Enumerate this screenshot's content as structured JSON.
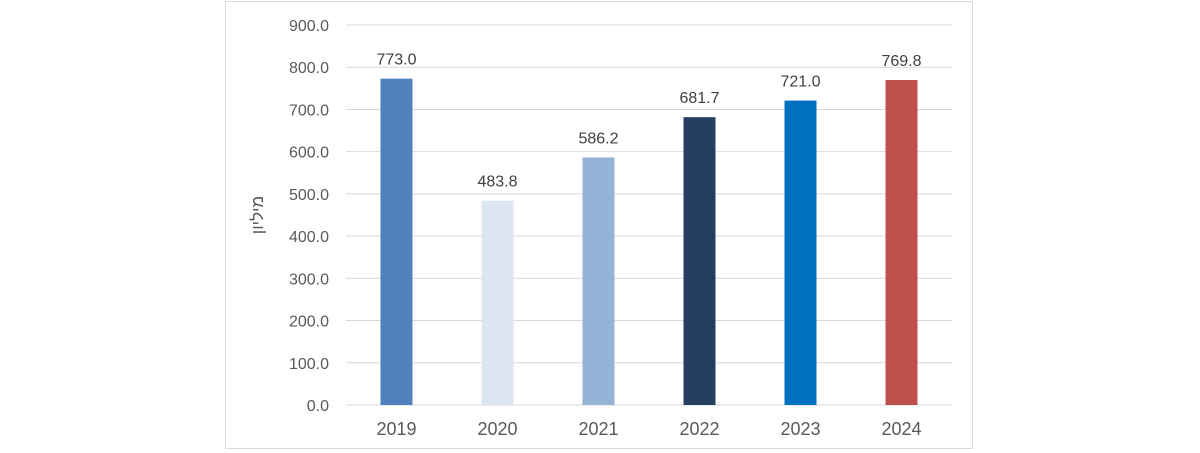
{
  "chart_data": {
    "type": "bar",
    "title": "",
    "xlabel": "",
    "ylabel": "מיליון",
    "categories": [
      "2019",
      "2020",
      "2021",
      "2022",
      "2023",
      "2024"
    ],
    "values": [
      773.0,
      483.8,
      586.2,
      681.7,
      721.0,
      769.8
    ],
    "data_labels": [
      "773.0",
      "483.8",
      "586.2",
      "681.7",
      "721.0",
      "769.8"
    ],
    "bar_colors": [
      "#4f81bd",
      "#dce6f2",
      "#95b3d7",
      "#243f60",
      "#0070c0",
      "#c0504d"
    ],
    "ylim": [
      0,
      900
    ],
    "yticks": [
      "0.0",
      "100.0",
      "200.0",
      "300.0",
      "400.0",
      "500.0",
      "600.0",
      "700.0",
      "800.0",
      "900.0"
    ],
    "grid": true,
    "legend": "none"
  }
}
